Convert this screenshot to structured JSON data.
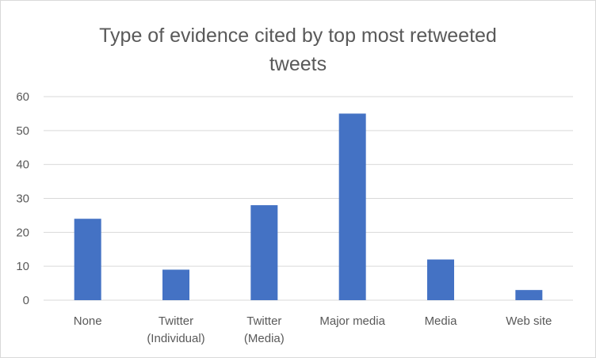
{
  "chart_data": {
    "type": "bar",
    "title_lines": [
      "Type of evidence cited by top most retweeted",
      "tweets"
    ],
    "categories": [
      [
        "None"
      ],
      [
        "Twitter",
        "(Individual)"
      ],
      [
        "Twitter",
        "(Media)"
      ],
      [
        "Major media"
      ],
      [
        "Media"
      ],
      [
        "Web site"
      ]
    ],
    "values": [
      24,
      9,
      28,
      55,
      12,
      3
    ],
    "ylim": [
      0,
      60
    ],
    "yticks": [
      0,
      10,
      20,
      30,
      40,
      50,
      60
    ],
    "grid": true,
    "legend": "none",
    "bar_color": "#4472c4",
    "grid_color": "#d9d9d9"
  }
}
